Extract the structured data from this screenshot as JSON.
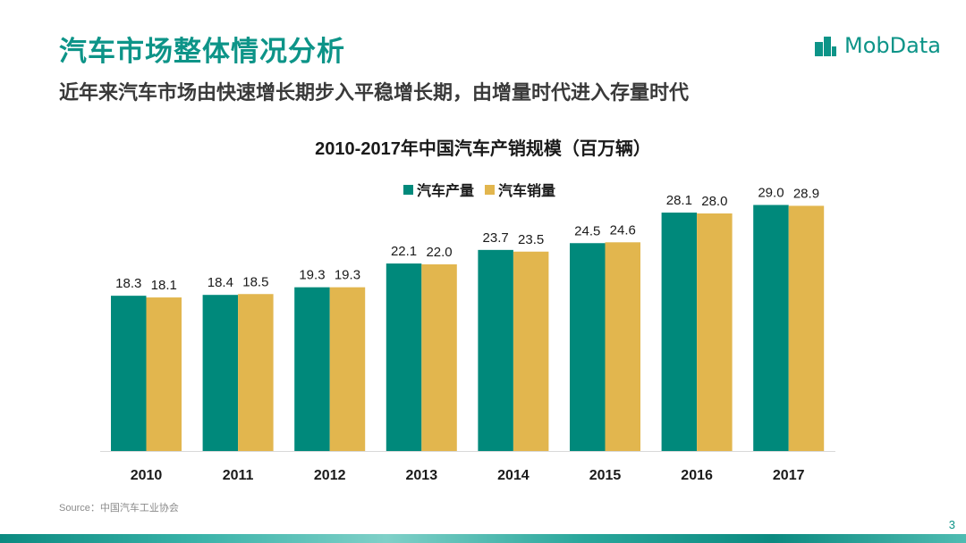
{
  "slide": {
    "title": "汽车市场整体情况分析",
    "subtitle": "近年来汽车市场由快速增长期步入平稳增长期，由增量时代进入存量时代",
    "source": "Source：中国汽车工业协会",
    "page_number": "3"
  },
  "brand": {
    "name": "MobData",
    "icon": "mobdata-logo-icon",
    "color": "#0d9488"
  },
  "chart_data": {
    "type": "bar",
    "title": "2010-2017年中国汽车产销规模（百万辆）",
    "xlabel": "",
    "ylabel": "",
    "categories": [
      "2010",
      "2011",
      "2012",
      "2013",
      "2014",
      "2015",
      "2016",
      "2017"
    ],
    "series": [
      {
        "name": "汽车产量",
        "color": "#00897b",
        "values": [
          18.3,
          18.4,
          19.3,
          22.1,
          23.7,
          24.5,
          28.1,
          29.0
        ],
        "labels": [
          "18.3",
          "18.4",
          "19.3",
          "22.1",
          "23.7",
          "24.5",
          "28.1",
          "29.0"
        ]
      },
      {
        "name": "汽车销量",
        "color": "#e2b64e",
        "values": [
          18.1,
          18.5,
          19.3,
          22.0,
          23.5,
          24.6,
          28.0,
          28.9
        ],
        "labels": [
          "18.1",
          "18.5",
          "19.3",
          "22.0",
          "23.5",
          "24.6",
          "28.0",
          "28.9"
        ]
      }
    ],
    "ylim": [
      0,
      30
    ],
    "grid": false,
    "legend_position": "top"
  }
}
